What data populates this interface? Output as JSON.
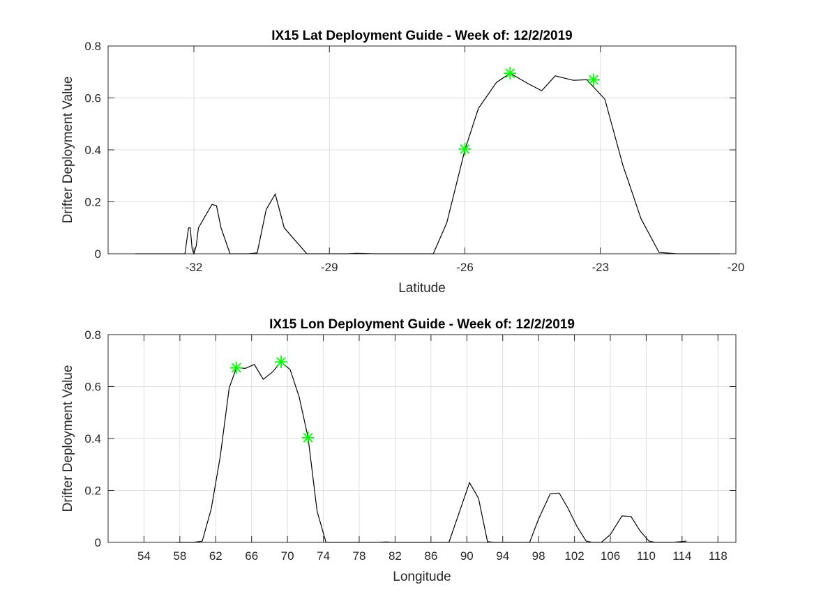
{
  "chart_data": [
    {
      "type": "line",
      "title": "IX15 Lat Deployment Guide - Week of: 12/2/2019",
      "xlabel": "Latitude",
      "ylabel": "Drifter Deployment Value",
      "xlim": [
        -33.9,
        -20
      ],
      "ylim": [
        0,
        0.8
      ],
      "xticks": [
        -32,
        -29,
        -26,
        -23,
        -20
      ],
      "xtick_labels": [
        "-32",
        "-29",
        "-26",
        "-23",
        "-20"
      ],
      "yticks": [
        0,
        0.2,
        0.4,
        0.6,
        0.8
      ],
      "ytick_labels": [
        "0",
        "0.2",
        "0.4",
        "0.6",
        "0.8"
      ],
      "grid": true,
      "series": [
        {
          "color": "#000000",
          "x": [
            -33.3,
            -32.2,
            -32.12,
            -32.08,
            -32.04,
            -32.0,
            -31.95,
            -31.9,
            -31.6,
            -31.5,
            -31.4,
            -31.2,
            -31.0,
            -30.8,
            -30.6,
            -30.4,
            -30.2,
            -30.0,
            -29.5,
            -29.0,
            -28.6,
            -28.4,
            -28.0,
            -27.5,
            -27.0,
            -26.7,
            -26.4,
            -26.0,
            -25.7,
            -25.3,
            -25.0,
            -24.6,
            -24.3,
            -24.0,
            -23.6,
            -23.3,
            -22.9,
            -22.5,
            -22.1,
            -21.7,
            -21.3,
            -20.9,
            -20.5,
            -20.35
          ],
          "y": [
            0,
            0,
            0.1,
            0.1,
            0.02,
            0,
            0.03,
            0.1,
            0.19,
            0.185,
            0.1,
            0,
            0,
            0,
            0.003,
            0.17,
            0.23,
            0.1,
            0,
            0,
            0,
            0.002,
            0,
            0,
            0,
            0,
            0.12,
            0.4,
            0.56,
            0.66,
            0.695,
            0.655,
            0.628,
            0.685,
            0.668,
            0.67,
            0.595,
            0.34,
            0.135,
            0.005,
            0,
            0,
            0,
            0
          ]
        }
      ],
      "markers": {
        "color": "#00ff00",
        "symbol": "asterisk",
        "x": [
          -26.0,
          -25.0,
          -23.15
        ],
        "y": [
          0.403,
          0.695,
          0.67
        ]
      }
    },
    {
      "type": "line",
      "title": "IX15 Lon Deployment Guide - Week of: 12/2/2019",
      "xlabel": "Longitude",
      "ylabel": "Drifter Deployment Value",
      "xlim": [
        50,
        120
      ],
      "ylim": [
        0,
        0.8
      ],
      "xticks": [
        54,
        58,
        62,
        66,
        70,
        74,
        78,
        82,
        86,
        90,
        94,
        98,
        102,
        106,
        110,
        114,
        118
      ],
      "xtick_labels": [
        "54",
        "58",
        "62",
        "66",
        "70",
        "74",
        "78",
        "82",
        "86",
        "90",
        "94",
        "98",
        "102",
        "106",
        "110",
        "114",
        "118"
      ],
      "yticks": [
        0,
        0.2,
        0.4,
        0.6,
        0.8
      ],
      "ytick_labels": [
        "0",
        "0.2",
        "0.4",
        "0.6",
        "0.8"
      ],
      "grid": true,
      "series": [
        {
          "color": "#000000",
          "x": [
            57.7,
            59.5,
            60.5,
            61.5,
            62.5,
            63.5,
            64.3,
            65.3,
            66.3,
            67.3,
            68.3,
            69.3,
            70.3,
            71.3,
            72.3,
            73.3,
            74.3,
            75.0,
            78.0,
            80.0,
            81.0,
            82.0,
            86.0,
            88.0,
            89.0,
            90.3,
            91.3,
            92.3,
            93.0,
            96.0,
            97.0,
            98.0,
            99.3,
            100.3,
            101.3,
            102.3,
            103.3,
            104.0,
            105.0,
            106.0,
            107.3,
            108.3,
            109.3,
            110.3,
            111.0,
            113.0,
            114.5
          ],
          "y": [
            0,
            0,
            0.005,
            0.13,
            0.33,
            0.595,
            0.672,
            0.67,
            0.685,
            0.628,
            0.655,
            0.695,
            0.665,
            0.56,
            0.403,
            0.12,
            0,
            0,
            0,
            0,
            0.002,
            0,
            0,
            0,
            0.1,
            0.23,
            0.17,
            0.003,
            0,
            0,
            0,
            0.09,
            0.187,
            0.19,
            0.13,
            0.06,
            0.005,
            0,
            0,
            0.03,
            0.102,
            0.1,
            0.045,
            0.005,
            0,
            0,
            0.005
          ]
        }
      ],
      "markers": {
        "color": "#00ff00",
        "symbol": "asterisk",
        "x": [
          64.3,
          69.3,
          72.3
        ],
        "y": [
          0.672,
          0.695,
          0.403
        ]
      }
    }
  ]
}
